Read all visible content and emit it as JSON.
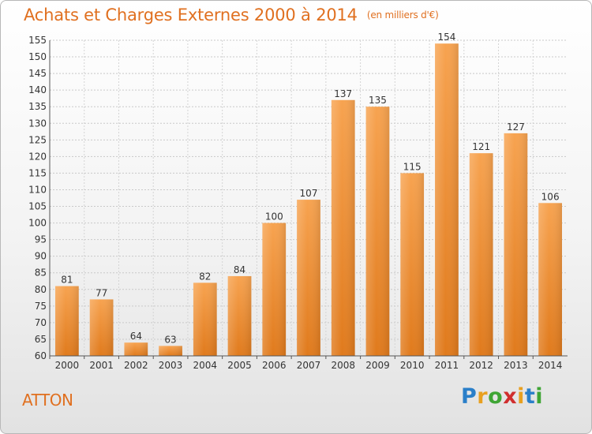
{
  "chart_data": {
    "type": "bar",
    "title": "Achats et Charges Externes 2000 à 2014",
    "subtitle": "(en milliers d'€)",
    "categories": [
      "2000",
      "2001",
      "2002",
      "2003",
      "2004",
      "2005",
      "2006",
      "2007",
      "2008",
      "2009",
      "2010",
      "2011",
      "2012",
      "2013",
      "2014"
    ],
    "values": [
      81,
      77,
      64,
      63,
      82,
      84,
      100,
      107,
      137,
      135,
      115,
      154,
      121,
      127,
      106
    ],
    "ylim": [
      60,
      155
    ],
    "ytick_step": 5,
    "grid": true,
    "bar_color_top": "#f7a350",
    "bar_color_bottom": "#e07a1c",
    "accent_color": "#e07020"
  },
  "city_name": "ATTON",
  "logo": {
    "letters": [
      "P",
      "r",
      "o",
      "x",
      "i",
      "t",
      "i"
    ],
    "colors": [
      "#2a7fc9",
      "#e8a020",
      "#3fa535",
      "#d02e2e",
      "#e8a020",
      "#2a7fc9",
      "#3fa535"
    ]
  }
}
